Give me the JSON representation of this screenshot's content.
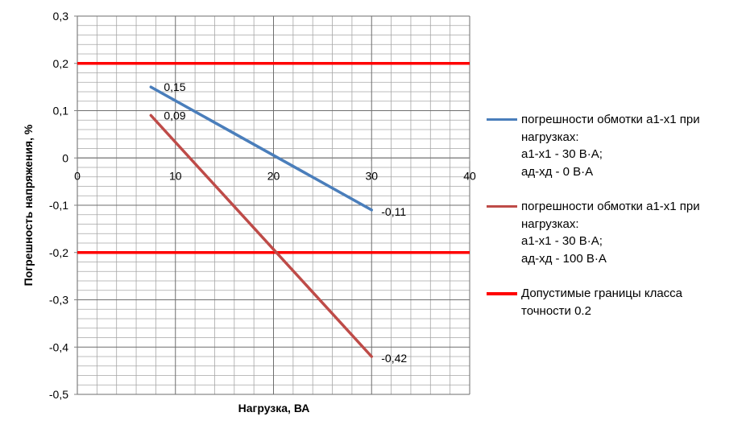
{
  "chart_data": {
    "type": "line",
    "title": "",
    "xlabel": "Нагрузка, ВА",
    "ylabel": "Погрешность напряжения, %",
    "xlim": [
      0,
      40
    ],
    "ylim": [
      -0.5,
      0.3
    ],
    "x_ticks": [
      "0",
      "10",
      "20",
      "30",
      "40"
    ],
    "y_ticks": [
      "0,3",
      "0,2",
      "0,1",
      "0",
      "-0,1",
      "-0,2",
      "-0,3",
      "-0,4",
      "-0,5"
    ],
    "grid": true,
    "legend_position": "right",
    "series": [
      {
        "name_lines": [
          "погрешности обмотки а1-х1 при",
          "нагрузках:",
          "а1-х1 - 30 В·А;",
          "ад-хд - 0 В·А"
        ],
        "color": "#4a7ebb",
        "x": [
          7.5,
          30
        ],
        "y": [
          0.15,
          -0.11
        ],
        "labels": [
          "0,15",
          "-0,11"
        ]
      },
      {
        "name_lines": [
          "погрешности обмотки а1-х1 при",
          "нагрузках:",
          "а1-х1 - 30 В·А;",
          "ад-хд - 100 В·А"
        ],
        "color": "#be4b48",
        "x": [
          7.5,
          30
        ],
        "y": [
          0.09,
          -0.42
        ],
        "labels": [
          "0,09",
          "-0,42"
        ]
      },
      {
        "name_lines": [
          "Допустимые границы класса",
          "точности 0.2"
        ],
        "color": "#ff0000",
        "lines_y": [
          0.2,
          -0.2
        ]
      }
    ]
  }
}
